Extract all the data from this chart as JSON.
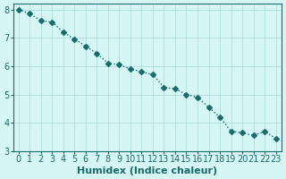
{
  "x": [
    0,
    1,
    2,
    3,
    4,
    5,
    6,
    7,
    8,
    9,
    10,
    11,
    12,
    13,
    14,
    15,
    16,
    17,
    18,
    19,
    20,
    21,
    22,
    23
  ],
  "y": [
    8.0,
    7.85,
    7.6,
    7.55,
    7.2,
    6.95,
    6.7,
    6.45,
    6.1,
    6.05,
    5.9,
    5.8,
    5.7,
    5.25,
    5.2,
    5.0,
    4.9,
    4.55,
    4.2,
    3.7,
    3.65,
    3.55,
    3.7,
    3.45
  ],
  "line_color": "#1a6b6b",
  "marker": "D",
  "marker_size": 3,
  "bg_color": "#d6f5f5",
  "grid_color": "#b0dede",
  "xlabel": "Humidex (Indice chaleur)",
  "xlabel_fontsize": 8,
  "tick_fontsize": 7,
  "ylim": [
    3,
    8.2
  ],
  "yticks": [
    3,
    4,
    5,
    6,
    7,
    8
  ],
  "xlim": [
    -0.5,
    23.5
  ]
}
